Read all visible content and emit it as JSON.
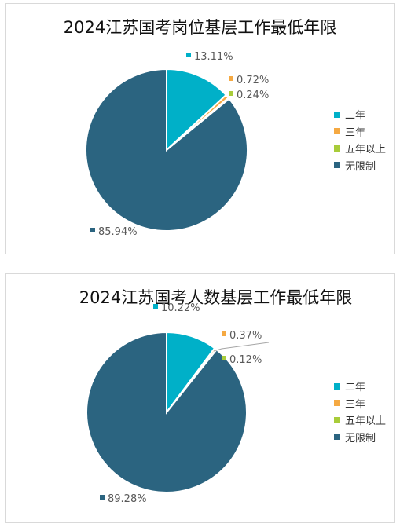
{
  "chart_data": [
    {
      "type": "pie",
      "title": "2024江苏国考岗位基层工作最低年限",
      "categories": [
        "二年",
        "三年",
        "五年以上",
        "无限制"
      ],
      "values": [
        13.11,
        0.72,
        0.24,
        85.94
      ],
      "labels": [
        "13.11%",
        "0.72%",
        "0.24%",
        "85.94%"
      ],
      "colors": [
        "#00B0C8",
        "#F5A942",
        "#A8CC3A",
        "#2B6480"
      ],
      "legend_position": "right"
    },
    {
      "type": "pie",
      "title": "2024江苏国考人数基层工作最低年限",
      "categories": [
        "二年",
        "三年",
        "五年以上",
        "无限制"
      ],
      "values": [
        10.22,
        0.37,
        0.12,
        89.28
      ],
      "labels": [
        "10.22%",
        "0.37%",
        "0.12%",
        "89.28%"
      ],
      "colors": [
        "#00B0C8",
        "#F5A942",
        "#A8CC3A",
        "#2B6480"
      ],
      "legend_position": "right"
    }
  ]
}
